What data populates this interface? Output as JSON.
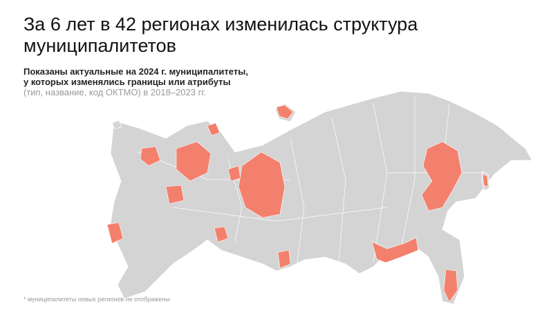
{
  "header": {
    "title_lines": [
      "За 6 лет в 42 регионах изменилась структура",
      "муниципалитетов"
    ],
    "subtitle_lines": [
      "Показаны актуальные на 2024 г. муниципалитеты,",
      "у которых изменялись границы или атрибуты"
    ],
    "subtitle_note": "(тип, название, код ОКТМО) в 2018–2023 гг."
  },
  "footnote": "* муниципалитеты новых регионов не отображены"
}
